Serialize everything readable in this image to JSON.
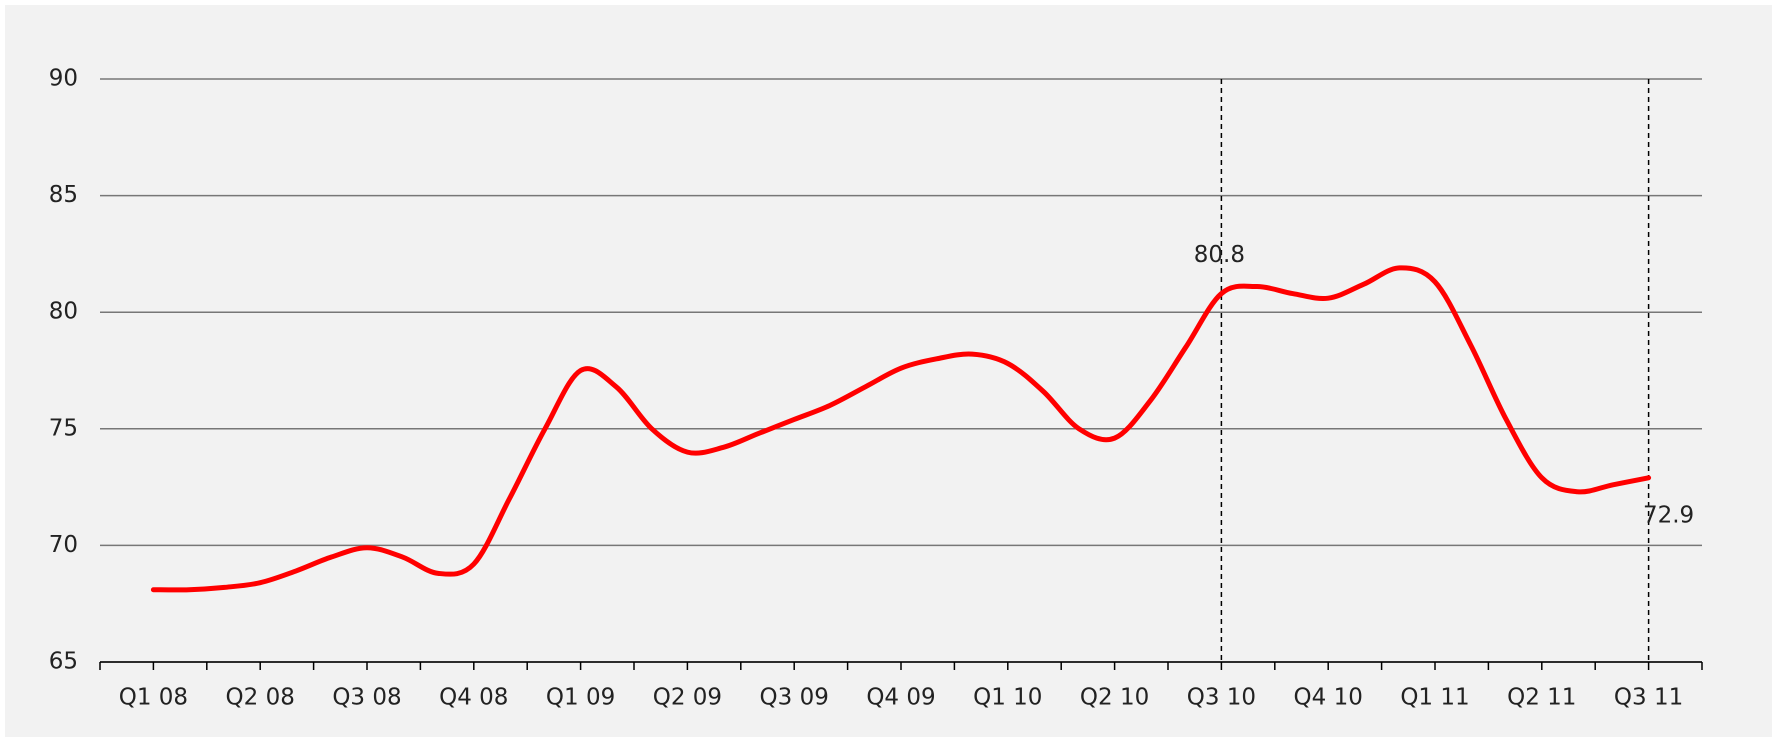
{
  "chart_data": {
    "type": "line",
    "categories": [
      "Q1 08",
      null,
      null,
      "Q2 08",
      null,
      null,
      "Q3 08",
      null,
      null,
      "Q4 08",
      null,
      null,
      "Q1 09",
      null,
      null,
      "Q2 09",
      null,
      null,
      "Q3 09",
      null,
      null,
      "Q4 09",
      null,
      null,
      "Q1 10",
      null,
      null,
      "Q2 10",
      null,
      null,
      "Q3 10",
      null,
      null,
      "Q4 10",
      null,
      null,
      "Q1 11",
      null,
      null,
      "Q2 11",
      null,
      null,
      "Q3 11"
    ],
    "series": [
      {
        "color": "#ff0000",
        "values": [
          68.1,
          68.1,
          68.2,
          68.4,
          68.9,
          69.5,
          69.9,
          69.5,
          68.8,
          69.2,
          72.0,
          75.0,
          77.5,
          76.8,
          75.0,
          74.0,
          74.2,
          74.8,
          75.4,
          76.0,
          76.8,
          77.6,
          78.0,
          78.2,
          77.8,
          76.6,
          75.0,
          74.6,
          76.2,
          78.5,
          80.8,
          81.1,
          80.8,
          80.6,
          81.2,
          81.9,
          81.3,
          78.6,
          75.4,
          72.9,
          72.3,
          72.6,
          72.9
        ]
      }
    ],
    "highlight_indices": [
      30,
      42
    ],
    "ylim": [
      65,
      90
    ],
    "yticks": [
      65,
      70,
      75,
      80,
      85,
      90
    ],
    "grid": true
  }
}
